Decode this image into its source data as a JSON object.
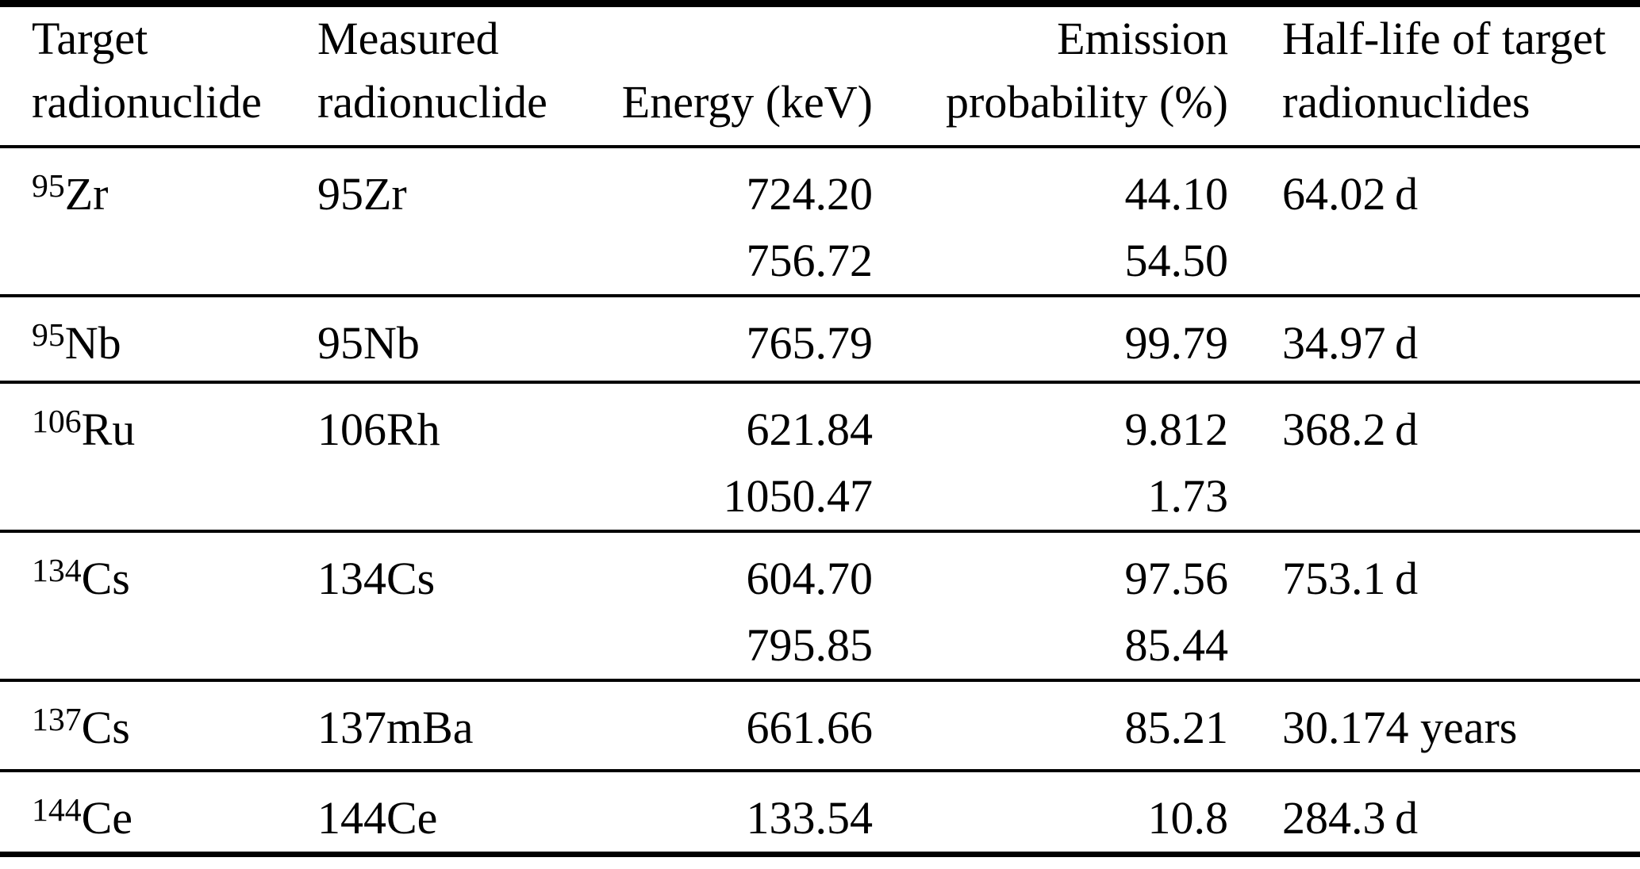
{
  "table": {
    "columns": [
      {
        "label_lines": [
          "Target",
          "radionuclide"
        ],
        "align": "left"
      },
      {
        "label_lines": [
          "Measured",
          "radionuclide"
        ],
        "align": "left"
      },
      {
        "label_lines": [
          "Energy (keV)"
        ],
        "align": "right"
      },
      {
        "label_lines": [
          "Emission",
          "probability (%)"
        ],
        "align": "right"
      },
      {
        "label_lines": [
          "Half-life of target",
          "radionuclides"
        ],
        "align": "left"
      }
    ],
    "rows": [
      {
        "target": {
          "mass": "95",
          "element": "Zr"
        },
        "measured": "95Zr",
        "energies": [
          "724.20",
          "756.72"
        ],
        "probabilities": [
          "44.10",
          "54.50"
        ],
        "half_life": "64.02 d"
      },
      {
        "target": {
          "mass": "95",
          "element": "Nb"
        },
        "measured": "95Nb",
        "energies": [
          "765.79"
        ],
        "probabilities": [
          "99.79"
        ],
        "half_life": "34.97 d"
      },
      {
        "target": {
          "mass": "106",
          "element": "Ru"
        },
        "measured": "106Rh",
        "energies": [
          "621.84",
          "1050.47"
        ],
        "probabilities": [
          "9.812",
          "1.73"
        ],
        "half_life": "368.2 d"
      },
      {
        "target": {
          "mass": "134",
          "element": "Cs"
        },
        "measured": "134Cs",
        "energies": [
          "604.70",
          "795.85"
        ],
        "probabilities": [
          "97.56",
          "85.44"
        ],
        "half_life": "753.1 d"
      },
      {
        "target": {
          "mass": "137",
          "element": "Cs"
        },
        "measured": "137mBa",
        "energies": [
          "661.66"
        ],
        "probabilities": [
          "85.21"
        ],
        "half_life": "30.174 years"
      },
      {
        "target": {
          "mass": "144",
          "element": "Ce"
        },
        "measured": "144Ce",
        "energies": [
          "133.54"
        ],
        "probabilities": [
          "10.8"
        ],
        "half_life": "284.3 d"
      }
    ]
  }
}
